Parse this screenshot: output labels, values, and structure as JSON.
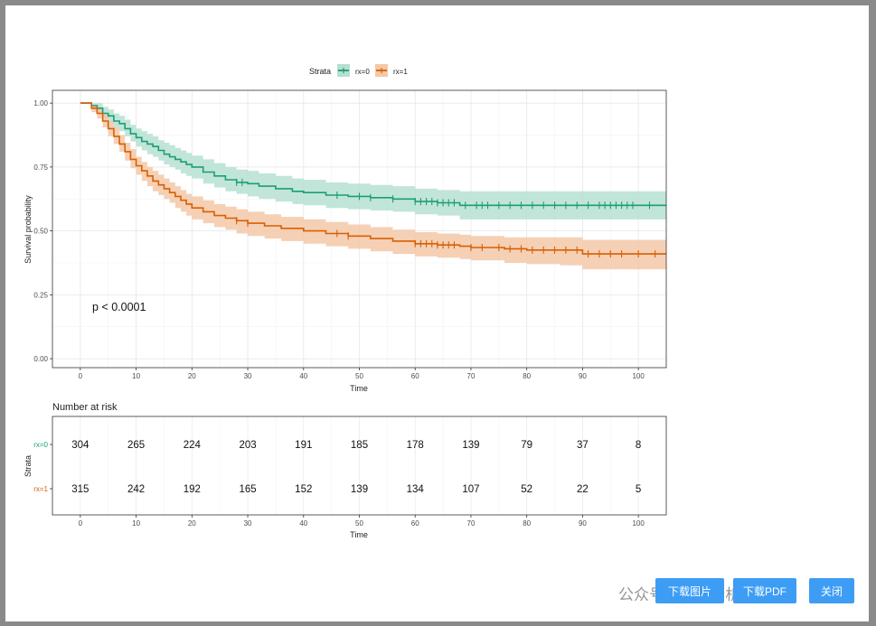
{
  "buttons": {
    "download_image": "下载图片",
    "download_pdf": "下载PDF",
    "close": "关闭"
  },
  "watermark": "公众号 · 科研分析",
  "colors": {
    "rx0": "#1b9e77",
    "rx0_band": "#b6e0d1",
    "rx1": "#d95f02",
    "rx1_band": "#f3c8a8",
    "risk_rx0_label": "#1b9e77",
    "risk_rx1_label": "#d95f02"
  },
  "chart_data": [
    {
      "type": "line",
      "subtype": "kaplan-meier",
      "legend_title": "Strata",
      "legend_position": "top",
      "xlabel": "Time",
      "ylabel": "Survival probability",
      "xlim": [
        -5,
        105
      ],
      "ylim": [
        -0.035,
        1.05
      ],
      "x_ticks": [
        0,
        10,
        20,
        30,
        40,
        50,
        60,
        70,
        80,
        90,
        100
      ],
      "y_ticks": [
        0.0,
        0.25,
        0.5,
        0.75,
        1.0
      ],
      "y_tick_labels": [
        "0.00",
        "0.25",
        "0.50",
        "0.75",
        "1.00"
      ],
      "grid": true,
      "annotation": "p < 0.0001",
      "series": [
        {
          "name": "rx=0",
          "x": [
            0,
            2,
            3,
            4,
            5,
            6,
            7,
            8,
            9,
            10,
            11,
            12,
            13,
            14,
            15,
            16,
            17,
            18,
            19,
            20,
            22,
            24,
            26,
            28,
            30,
            32,
            35,
            38,
            40,
            44,
            48,
            52,
            56,
            60,
            64,
            68,
            70,
            80,
            90,
            105
          ],
          "y": [
            1.0,
            0.99,
            0.98,
            0.96,
            0.95,
            0.93,
            0.92,
            0.9,
            0.88,
            0.865,
            0.85,
            0.84,
            0.83,
            0.815,
            0.8,
            0.79,
            0.78,
            0.77,
            0.76,
            0.75,
            0.73,
            0.715,
            0.7,
            0.69,
            0.685,
            0.675,
            0.665,
            0.655,
            0.65,
            0.64,
            0.635,
            0.63,
            0.625,
            0.615,
            0.61,
            0.6,
            0.6,
            0.6,
            0.6,
            0.6
          ],
          "lower": [
            1.0,
            0.975,
            0.96,
            0.94,
            0.925,
            0.905,
            0.89,
            0.87,
            0.85,
            0.83,
            0.815,
            0.8,
            0.79,
            0.775,
            0.76,
            0.75,
            0.74,
            0.725,
            0.715,
            0.705,
            0.685,
            0.67,
            0.655,
            0.645,
            0.635,
            0.625,
            0.615,
            0.605,
            0.6,
            0.59,
            0.585,
            0.58,
            0.575,
            0.565,
            0.56,
            0.545,
            0.545,
            0.545,
            0.545,
            0.545
          ],
          "upper": [
            1.0,
            1.0,
            1.0,
            0.985,
            0.975,
            0.96,
            0.95,
            0.935,
            0.915,
            0.9,
            0.89,
            0.88,
            0.87,
            0.855,
            0.845,
            0.835,
            0.825,
            0.815,
            0.805,
            0.795,
            0.78,
            0.765,
            0.75,
            0.74,
            0.735,
            0.725,
            0.715,
            0.705,
            0.7,
            0.69,
            0.685,
            0.68,
            0.675,
            0.665,
            0.66,
            0.655,
            0.655,
            0.655,
            0.655,
            0.655
          ],
          "censor_x": [
            28,
            29,
            46,
            50,
            52,
            56,
            60,
            61,
            62,
            63,
            64,
            65,
            66,
            67,
            69,
            71,
            72,
            73,
            75,
            77,
            79,
            81,
            83,
            85,
            87,
            89,
            91,
            93,
            94,
            95,
            96,
            97,
            98,
            99,
            102
          ]
        },
        {
          "name": "rx=1",
          "x": [
            0,
            2,
            3,
            4,
            5,
            6,
            7,
            8,
            9,
            10,
            11,
            12,
            13,
            14,
            15,
            16,
            17,
            18,
            19,
            20,
            22,
            24,
            26,
            28,
            30,
            33,
            36,
            40,
            44,
            48,
            52,
            56,
            60,
            64,
            68,
            70,
            76,
            80,
            86,
            90,
            105
          ],
          "y": [
            1.0,
            0.98,
            0.96,
            0.93,
            0.9,
            0.87,
            0.84,
            0.81,
            0.78,
            0.755,
            0.735,
            0.715,
            0.695,
            0.68,
            0.665,
            0.65,
            0.635,
            0.62,
            0.605,
            0.59,
            0.575,
            0.56,
            0.55,
            0.54,
            0.53,
            0.52,
            0.51,
            0.5,
            0.49,
            0.48,
            0.47,
            0.46,
            0.45,
            0.445,
            0.44,
            0.435,
            0.43,
            0.425,
            0.425,
            0.41,
            0.41
          ],
          "lower": [
            1.0,
            0.965,
            0.94,
            0.905,
            0.87,
            0.84,
            0.81,
            0.775,
            0.745,
            0.72,
            0.695,
            0.675,
            0.655,
            0.64,
            0.625,
            0.61,
            0.59,
            0.575,
            0.56,
            0.545,
            0.53,
            0.515,
            0.505,
            0.49,
            0.48,
            0.47,
            0.46,
            0.45,
            0.44,
            0.43,
            0.42,
            0.41,
            0.4,
            0.395,
            0.39,
            0.385,
            0.375,
            0.37,
            0.365,
            0.35,
            0.35
          ],
          "upper": [
            1.0,
            0.995,
            0.985,
            0.955,
            0.93,
            0.905,
            0.875,
            0.845,
            0.82,
            0.79,
            0.77,
            0.75,
            0.735,
            0.72,
            0.705,
            0.69,
            0.675,
            0.66,
            0.645,
            0.635,
            0.62,
            0.605,
            0.595,
            0.585,
            0.575,
            0.565,
            0.555,
            0.545,
            0.535,
            0.525,
            0.515,
            0.505,
            0.495,
            0.49,
            0.485,
            0.48,
            0.475,
            0.475,
            0.475,
            0.465,
            0.465
          ],
          "censor_x": [
            28,
            30,
            46,
            48,
            60,
            61,
            62,
            63,
            64,
            65,
            66,
            67,
            70,
            72,
            75,
            77,
            79,
            81,
            83,
            85,
            87,
            89,
            91,
            93,
            95,
            97,
            100,
            103
          ]
        }
      ]
    },
    {
      "type": "table",
      "title": "Number at risk",
      "xlabel": "Time",
      "ylabel": "Strata",
      "x_ticks": [
        0,
        10,
        20,
        30,
        40,
        50,
        60,
        70,
        80,
        90,
        100
      ],
      "rows": [
        {
          "label": "rx=0",
          "values": [
            304,
            265,
            224,
            203,
            191,
            185,
            178,
            139,
            79,
            37,
            8
          ]
        },
        {
          "label": "rx=1",
          "values": [
            315,
            242,
            192,
            165,
            152,
            139,
            134,
            107,
            52,
            22,
            5
          ]
        }
      ]
    }
  ]
}
